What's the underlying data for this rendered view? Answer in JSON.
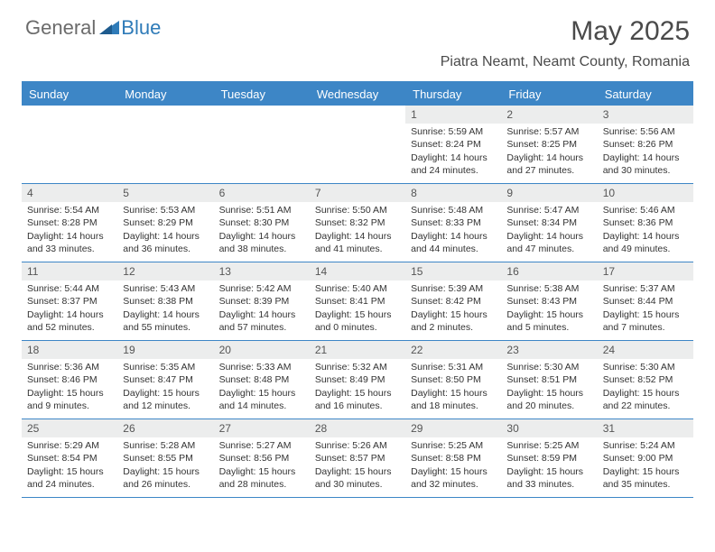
{
  "logo": {
    "general": "General",
    "blue": "Blue"
  },
  "title": "May 2025",
  "location": "Piatra Neamt, Neamt County, Romania",
  "colors": {
    "header_bg": "#3d86c6",
    "header_text": "#ffffff",
    "date_bg": "#eceded",
    "border": "#3d86c6",
    "logo_gray": "#6b6b6b",
    "logo_blue": "#2f7bb8"
  },
  "dayheads": [
    "Sunday",
    "Monday",
    "Tuesday",
    "Wednesday",
    "Thursday",
    "Friday",
    "Saturday"
  ],
  "weeks": [
    [
      {
        "date": "",
        "sunrise": "",
        "sunset": "",
        "daylight": ""
      },
      {
        "date": "",
        "sunrise": "",
        "sunset": "",
        "daylight": ""
      },
      {
        "date": "",
        "sunrise": "",
        "sunset": "",
        "daylight": ""
      },
      {
        "date": "",
        "sunrise": "",
        "sunset": "",
        "daylight": ""
      },
      {
        "date": "1",
        "sunrise": "Sunrise: 5:59 AM",
        "sunset": "Sunset: 8:24 PM",
        "daylight": "Daylight: 14 hours and 24 minutes."
      },
      {
        "date": "2",
        "sunrise": "Sunrise: 5:57 AM",
        "sunset": "Sunset: 8:25 PM",
        "daylight": "Daylight: 14 hours and 27 minutes."
      },
      {
        "date": "3",
        "sunrise": "Sunrise: 5:56 AM",
        "sunset": "Sunset: 8:26 PM",
        "daylight": "Daylight: 14 hours and 30 minutes."
      }
    ],
    [
      {
        "date": "4",
        "sunrise": "Sunrise: 5:54 AM",
        "sunset": "Sunset: 8:28 PM",
        "daylight": "Daylight: 14 hours and 33 minutes."
      },
      {
        "date": "5",
        "sunrise": "Sunrise: 5:53 AM",
        "sunset": "Sunset: 8:29 PM",
        "daylight": "Daylight: 14 hours and 36 minutes."
      },
      {
        "date": "6",
        "sunrise": "Sunrise: 5:51 AM",
        "sunset": "Sunset: 8:30 PM",
        "daylight": "Daylight: 14 hours and 38 minutes."
      },
      {
        "date": "7",
        "sunrise": "Sunrise: 5:50 AM",
        "sunset": "Sunset: 8:32 PM",
        "daylight": "Daylight: 14 hours and 41 minutes."
      },
      {
        "date": "8",
        "sunrise": "Sunrise: 5:48 AM",
        "sunset": "Sunset: 8:33 PM",
        "daylight": "Daylight: 14 hours and 44 minutes."
      },
      {
        "date": "9",
        "sunrise": "Sunrise: 5:47 AM",
        "sunset": "Sunset: 8:34 PM",
        "daylight": "Daylight: 14 hours and 47 minutes."
      },
      {
        "date": "10",
        "sunrise": "Sunrise: 5:46 AM",
        "sunset": "Sunset: 8:36 PM",
        "daylight": "Daylight: 14 hours and 49 minutes."
      }
    ],
    [
      {
        "date": "11",
        "sunrise": "Sunrise: 5:44 AM",
        "sunset": "Sunset: 8:37 PM",
        "daylight": "Daylight: 14 hours and 52 minutes."
      },
      {
        "date": "12",
        "sunrise": "Sunrise: 5:43 AM",
        "sunset": "Sunset: 8:38 PM",
        "daylight": "Daylight: 14 hours and 55 minutes."
      },
      {
        "date": "13",
        "sunrise": "Sunrise: 5:42 AM",
        "sunset": "Sunset: 8:39 PM",
        "daylight": "Daylight: 14 hours and 57 minutes."
      },
      {
        "date": "14",
        "sunrise": "Sunrise: 5:40 AM",
        "sunset": "Sunset: 8:41 PM",
        "daylight": "Daylight: 15 hours and 0 minutes."
      },
      {
        "date": "15",
        "sunrise": "Sunrise: 5:39 AM",
        "sunset": "Sunset: 8:42 PM",
        "daylight": "Daylight: 15 hours and 2 minutes."
      },
      {
        "date": "16",
        "sunrise": "Sunrise: 5:38 AM",
        "sunset": "Sunset: 8:43 PM",
        "daylight": "Daylight: 15 hours and 5 minutes."
      },
      {
        "date": "17",
        "sunrise": "Sunrise: 5:37 AM",
        "sunset": "Sunset: 8:44 PM",
        "daylight": "Daylight: 15 hours and 7 minutes."
      }
    ],
    [
      {
        "date": "18",
        "sunrise": "Sunrise: 5:36 AM",
        "sunset": "Sunset: 8:46 PM",
        "daylight": "Daylight: 15 hours and 9 minutes."
      },
      {
        "date": "19",
        "sunrise": "Sunrise: 5:35 AM",
        "sunset": "Sunset: 8:47 PM",
        "daylight": "Daylight: 15 hours and 12 minutes."
      },
      {
        "date": "20",
        "sunrise": "Sunrise: 5:33 AM",
        "sunset": "Sunset: 8:48 PM",
        "daylight": "Daylight: 15 hours and 14 minutes."
      },
      {
        "date": "21",
        "sunrise": "Sunrise: 5:32 AM",
        "sunset": "Sunset: 8:49 PM",
        "daylight": "Daylight: 15 hours and 16 minutes."
      },
      {
        "date": "22",
        "sunrise": "Sunrise: 5:31 AM",
        "sunset": "Sunset: 8:50 PM",
        "daylight": "Daylight: 15 hours and 18 minutes."
      },
      {
        "date": "23",
        "sunrise": "Sunrise: 5:30 AM",
        "sunset": "Sunset: 8:51 PM",
        "daylight": "Daylight: 15 hours and 20 minutes."
      },
      {
        "date": "24",
        "sunrise": "Sunrise: 5:30 AM",
        "sunset": "Sunset: 8:52 PM",
        "daylight": "Daylight: 15 hours and 22 minutes."
      }
    ],
    [
      {
        "date": "25",
        "sunrise": "Sunrise: 5:29 AM",
        "sunset": "Sunset: 8:54 PM",
        "daylight": "Daylight: 15 hours and 24 minutes."
      },
      {
        "date": "26",
        "sunrise": "Sunrise: 5:28 AM",
        "sunset": "Sunset: 8:55 PM",
        "daylight": "Daylight: 15 hours and 26 minutes."
      },
      {
        "date": "27",
        "sunrise": "Sunrise: 5:27 AM",
        "sunset": "Sunset: 8:56 PM",
        "daylight": "Daylight: 15 hours and 28 minutes."
      },
      {
        "date": "28",
        "sunrise": "Sunrise: 5:26 AM",
        "sunset": "Sunset: 8:57 PM",
        "daylight": "Daylight: 15 hours and 30 minutes."
      },
      {
        "date": "29",
        "sunrise": "Sunrise: 5:25 AM",
        "sunset": "Sunset: 8:58 PM",
        "daylight": "Daylight: 15 hours and 32 minutes."
      },
      {
        "date": "30",
        "sunrise": "Sunrise: 5:25 AM",
        "sunset": "Sunset: 8:59 PM",
        "daylight": "Daylight: 15 hours and 33 minutes."
      },
      {
        "date": "31",
        "sunrise": "Sunrise: 5:24 AM",
        "sunset": "Sunset: 9:00 PM",
        "daylight": "Daylight: 15 hours and 35 minutes."
      }
    ]
  ]
}
